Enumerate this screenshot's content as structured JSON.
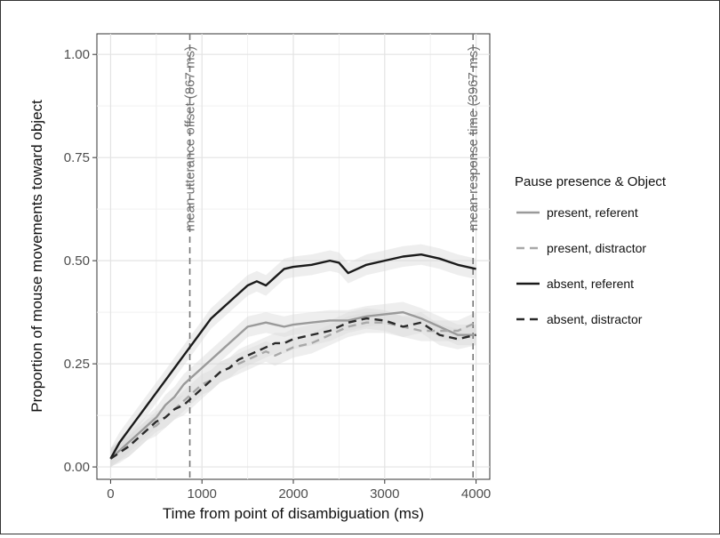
{
  "chart_data": {
    "type": "line",
    "title": "",
    "xlabel": "Time from point of disambiguation (ms)",
    "ylabel": "Proportion of mouse movements toward object",
    "xlim": [
      -150,
      4150
    ],
    "ylim": [
      -0.03,
      1.05
    ],
    "x_ticks": [
      0,
      1000,
      2000,
      3000,
      4000
    ],
    "x_tick_labels": [
      "0",
      "1000",
      "2000",
      "3000",
      "4000"
    ],
    "y_ticks": [
      0.0,
      0.25,
      0.5,
      0.75,
      1.0
    ],
    "y_tick_labels": [
      "0.00",
      "0.25",
      "0.50",
      "0.75",
      "1.00"
    ],
    "grid": true,
    "legend": {
      "title": "Pause presence & Object",
      "placement": "right"
    },
    "annotations": [
      {
        "x": 867,
        "label": "mean utterance offset (867 ms)"
      },
      {
        "x": 3967,
        "label": "mean response time (3967 ms)"
      }
    ],
    "series": [
      {
        "name": "present, referent",
        "color": "#9a9a9a",
        "dash": "solid",
        "x": [
          0,
          100,
          200,
          300,
          400,
          500,
          600,
          700,
          800,
          900,
          1000,
          1100,
          1200,
          1300,
          1400,
          1500,
          1600,
          1700,
          1800,
          1900,
          2000,
          2200,
          2400,
          2600,
          2800,
          3000,
          3200,
          3400,
          3600,
          3800,
          4000
        ],
        "y": [
          0.02,
          0.04,
          0.06,
          0.08,
          0.1,
          0.12,
          0.15,
          0.17,
          0.2,
          0.22,
          0.24,
          0.26,
          0.28,
          0.3,
          0.32,
          0.34,
          0.345,
          0.35,
          0.345,
          0.34,
          0.345,
          0.35,
          0.355,
          0.355,
          0.365,
          0.37,
          0.375,
          0.36,
          0.34,
          0.32,
          0.32
        ]
      },
      {
        "name": "present, distractor",
        "color": "#a8a8a8",
        "dash": "dashed",
        "x": [
          0,
          100,
          200,
          300,
          400,
          500,
          600,
          700,
          800,
          900,
          1000,
          1100,
          1200,
          1300,
          1400,
          1500,
          1600,
          1700,
          1800,
          1900,
          2000,
          2200,
          2400,
          2600,
          2800,
          3000,
          3200,
          3400,
          3600,
          3800,
          4000
        ],
        "y": [
          0.02,
          0.04,
          0.05,
          0.07,
          0.09,
          0.1,
          0.12,
          0.14,
          0.16,
          0.18,
          0.2,
          0.21,
          0.23,
          0.24,
          0.25,
          0.26,
          0.27,
          0.28,
          0.27,
          0.28,
          0.29,
          0.3,
          0.32,
          0.34,
          0.35,
          0.35,
          0.34,
          0.33,
          0.33,
          0.33,
          0.35
        ]
      },
      {
        "name": "absent, referent",
        "color": "#1a1a1a",
        "dash": "solid",
        "x": [
          0,
          100,
          200,
          300,
          400,
          500,
          600,
          700,
          800,
          900,
          1000,
          1100,
          1200,
          1300,
          1400,
          1500,
          1600,
          1700,
          1800,
          1900,
          2000,
          2200,
          2400,
          2500,
          2600,
          2800,
          3000,
          3200,
          3400,
          3600,
          3800,
          4000
        ],
        "y": [
          0.02,
          0.06,
          0.09,
          0.12,
          0.15,
          0.18,
          0.21,
          0.24,
          0.27,
          0.3,
          0.33,
          0.36,
          0.38,
          0.4,
          0.42,
          0.44,
          0.45,
          0.44,
          0.46,
          0.48,
          0.485,
          0.49,
          0.5,
          0.495,
          0.47,
          0.49,
          0.5,
          0.51,
          0.515,
          0.505,
          0.49,
          0.48
        ]
      },
      {
        "name": "absent, distractor",
        "color": "#2a2a2a",
        "dash": "dashed",
        "x": [
          0,
          100,
          200,
          300,
          400,
          500,
          600,
          700,
          800,
          900,
          1000,
          1100,
          1200,
          1300,
          1400,
          1500,
          1600,
          1700,
          1800,
          1900,
          2000,
          2200,
          2400,
          2600,
          2800,
          3000,
          3200,
          3400,
          3600,
          3800,
          4000
        ],
        "y": [
          0.02,
          0.035,
          0.05,
          0.07,
          0.09,
          0.11,
          0.12,
          0.14,
          0.15,
          0.17,
          0.19,
          0.21,
          0.23,
          0.24,
          0.26,
          0.27,
          0.28,
          0.29,
          0.3,
          0.3,
          0.31,
          0.32,
          0.33,
          0.35,
          0.36,
          0.355,
          0.34,
          0.35,
          0.32,
          0.31,
          0.32
        ]
      }
    ]
  }
}
